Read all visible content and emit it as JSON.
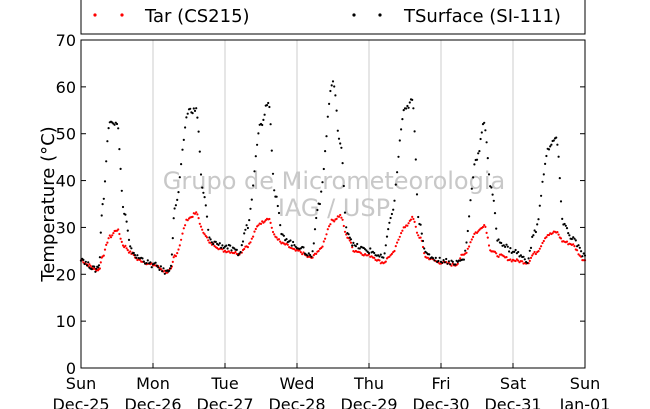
{
  "chart_data": {
    "type": "scatter",
    "ylabel": "Temperature (°C)",
    "xlabel": "",
    "ylim": [
      0,
      70
    ],
    "yticks": [
      0,
      10,
      20,
      30,
      40,
      50,
      60,
      70
    ],
    "xlim_days": [
      0,
      7
    ],
    "xticks": [
      {
        "day": 0,
        "weekday": "Sun",
        "date": "Dec-25"
      },
      {
        "day": 1,
        "weekday": "Mon",
        "date": "Dec-26"
      },
      {
        "day": 2,
        "weekday": "Tue",
        "date": "Dec-27"
      },
      {
        "day": 3,
        "weekday": "Wed",
        "date": "Dec-28"
      },
      {
        "day": 4,
        "weekday": "Thu",
        "date": "Dec-29"
      },
      {
        "day": 5,
        "weekday": "Fri",
        "date": "Dec-30"
      },
      {
        "day": 6,
        "weekday": "Sat",
        "date": "Dec-31"
      },
      {
        "day": 7,
        "weekday": "Sun",
        "date": "Jan-01"
      }
    ],
    "grid": "vertical",
    "legend_position": "top",
    "watermark": [
      "Grupo de Micrometeorologia",
      "IAG / USP"
    ],
    "series": [
      {
        "name": "Tar (CS215)",
        "color": "#ff0000",
        "x": [
          0.0,
          0.1,
          0.2,
          0.25,
          0.3,
          0.4,
          0.5,
          0.6,
          0.7,
          0.8,
          1.0,
          1.2,
          1.25,
          1.3,
          1.5,
          1.6,
          1.7,
          1.8,
          2.0,
          2.2,
          2.3,
          2.5,
          2.6,
          2.7,
          2.8,
          3.0,
          3.2,
          3.3,
          3.5,
          3.6,
          3.7,
          3.8,
          4.0,
          4.2,
          4.3,
          4.5,
          4.6,
          4.7,
          4.8,
          5.0,
          5.2,
          5.3,
          5.5,
          5.6,
          5.7,
          5.8,
          6.0,
          6.2,
          6.3,
          6.5,
          6.6,
          6.7,
          6.8,
          7.0
        ],
        "y": [
          23.0,
          22.0,
          21.0,
          21.0,
          24.0,
          28.0,
          29.5,
          26.0,
          24.5,
          23.0,
          22.0,
          20.5,
          21.0,
          24.0,
          32.0,
          33.0,
          29.0,
          26.5,
          25.0,
          24.5,
          26.0,
          31.0,
          32.0,
          28.0,
          26.5,
          25.0,
          23.5,
          25.0,
          31.5,
          32.5,
          28.0,
          25.0,
          24.0,
          22.5,
          24.0,
          30.0,
          32.0,
          28.0,
          23.5,
          22.5,
          22.0,
          24.0,
          29.0,
          30.5,
          25.0,
          24.0,
          23.0,
          22.5,
          24.5,
          28.5,
          29.0,
          27.0,
          26.5,
          23.0
        ]
      },
      {
        "name": "TSurface (SI-111)",
        "color": "#000000",
        "x": [
          0.0,
          0.1,
          0.2,
          0.25,
          0.3,
          0.4,
          0.5,
          0.6,
          0.7,
          0.8,
          1.0,
          1.2,
          1.25,
          1.3,
          1.5,
          1.6,
          1.7,
          1.8,
          2.0,
          2.2,
          2.3,
          2.5,
          2.6,
          2.7,
          2.8,
          3.0,
          3.2,
          3.3,
          3.5,
          3.6,
          3.7,
          3.8,
          4.0,
          4.2,
          4.3,
          4.5,
          4.6,
          4.7,
          4.8,
          5.0,
          5.2,
          5.3,
          5.5,
          5.6,
          5.7,
          5.8,
          6.0,
          6.2,
          6.3,
          6.5,
          6.6,
          6.7,
          6.8,
          7.0
        ],
        "y": [
          23.5,
          22.0,
          21.0,
          22.0,
          35.0,
          53.0,
          52.0,
          33.0,
          25.0,
          23.5,
          22.0,
          20.5,
          22.0,
          34.0,
          55.0,
          55.0,
          37.0,
          27.0,
          26.0,
          24.5,
          30.0,
          52.0,
          57.0,
          37.0,
          28.0,
          26.0,
          24.0,
          35.0,
          61.0,
          48.0,
          29.0,
          26.0,
          25.0,
          23.5,
          32.0,
          55.0,
          57.0,
          31.0,
          24.0,
          23.0,
          22.5,
          23.0,
          45.0,
          52.0,
          38.0,
          27.0,
          25.0,
          23.0,
          29.0,
          47.0,
          49.0,
          31.0,
          28.0,
          24.0
        ]
      }
    ]
  }
}
